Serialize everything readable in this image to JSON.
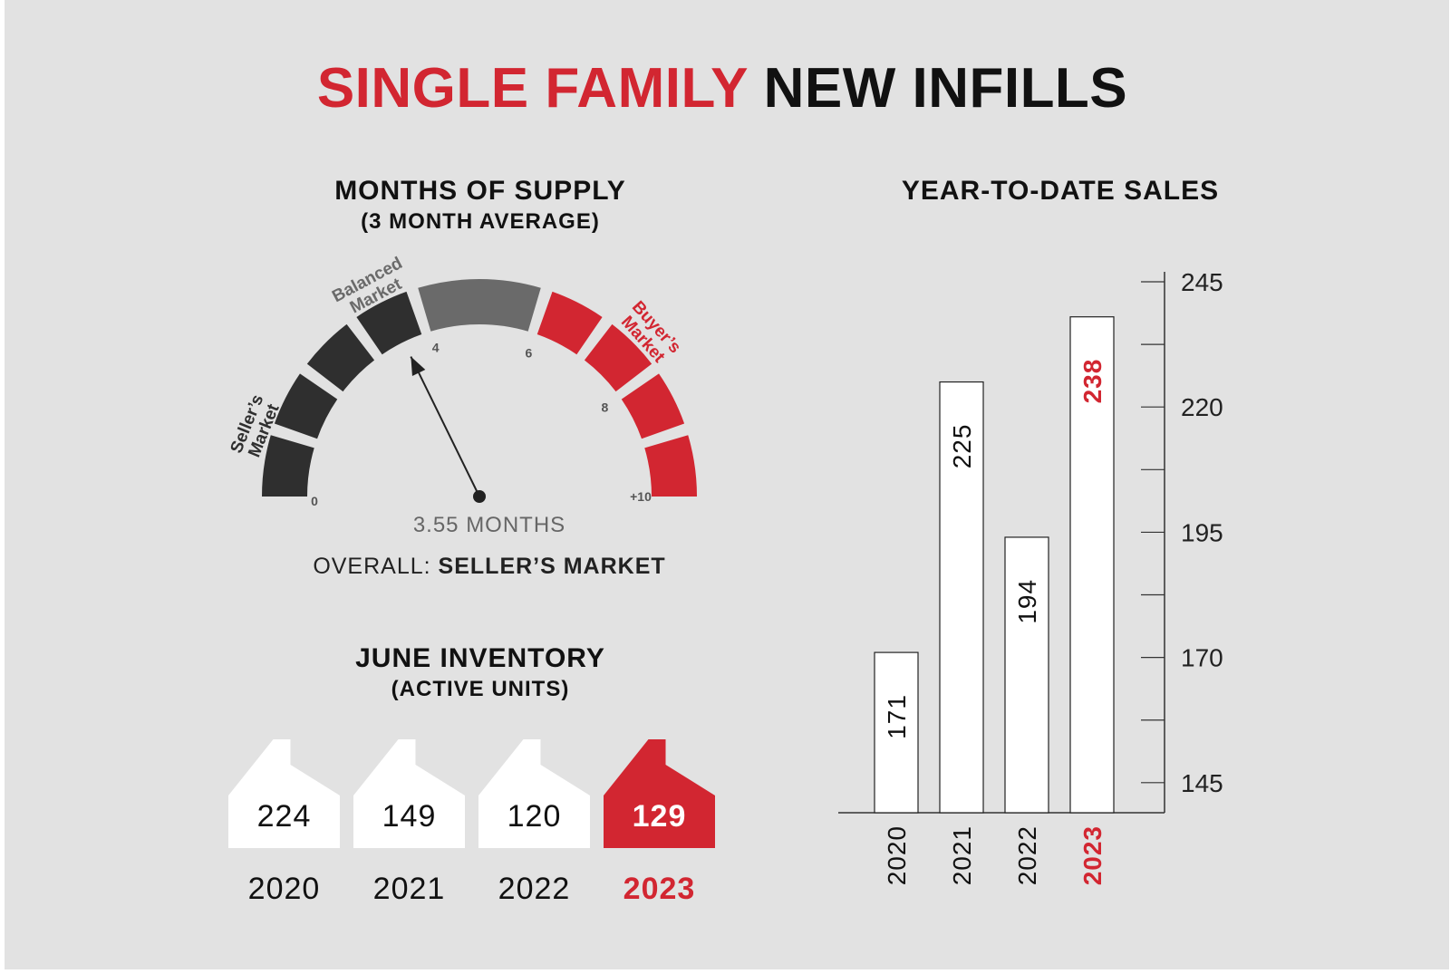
{
  "header": {
    "title_highlight": "SINGLE FAMILY",
    "title_rest": "NEW INFILLS"
  },
  "supply": {
    "heading": "MONTHS OF SUPPLY",
    "subheading": "(3 MONTH AVERAGE)",
    "value_label": "3.55 MONTHS",
    "overall_prefix": "OVERALL:",
    "overall_value": "SELLER’S MARKET",
    "zone_labels": {
      "sellers": [
        "Seller’s",
        "Market"
      ],
      "balanced": [
        "Balanced",
        "Market"
      ],
      "buyers": [
        "Buyer’s",
        "Market"
      ]
    },
    "ticks": [
      "0",
      "4",
      "6",
      "8",
      "+10"
    ]
  },
  "inventory": {
    "heading": "JUNE INVENTORY",
    "subheading": "(ACTIVE UNITS)"
  },
  "ytd": {
    "heading": "YEAR-TO-DATE SALES"
  },
  "colors": {
    "accent": "#d22631",
    "dark": "#2f2f2f",
    "mid": "#6a6a6a",
    "background": "#e2e2e2",
    "white": "#ffffff"
  },
  "chart_data": [
    {
      "type": "gauge",
      "title": "MONTHS OF SUPPLY",
      "subtitle": "(3 MONTH AVERAGE)",
      "value": 3.55,
      "range": [
        0,
        10
      ],
      "zones": [
        {
          "label": "Seller’s Market",
          "range": [
            0,
            4
          ],
          "color": "#2f2f2f"
        },
        {
          "label": "Balanced Market",
          "range": [
            4,
            6
          ],
          "color": "#6a6a6a"
        },
        {
          "label": "Buyer’s Market",
          "range": [
            6,
            10
          ],
          "color": "#d22631"
        }
      ],
      "tick_labels": [
        "0",
        "4",
        "6",
        "8",
        "+10"
      ]
    },
    {
      "type": "bar",
      "title": "JUNE INVENTORY",
      "subtitle": "(ACTIVE UNITS)",
      "categories": [
        "2020",
        "2021",
        "2022",
        "2023"
      ],
      "values": [
        224,
        149,
        120,
        129
      ],
      "highlight": "2023"
    },
    {
      "type": "bar",
      "title": "YEAR-TO-DATE SALES",
      "categories": [
        "2020",
        "2021",
        "2022",
        "2023"
      ],
      "values": [
        171,
        225,
        194,
        238
      ],
      "highlight": "2023",
      "ylim": [
        139,
        245
      ],
      "yticks": [
        145,
        170,
        195,
        220,
        245
      ],
      "minor_ticks": [
        157.5,
        182.5,
        207.5,
        232.5
      ]
    }
  ]
}
